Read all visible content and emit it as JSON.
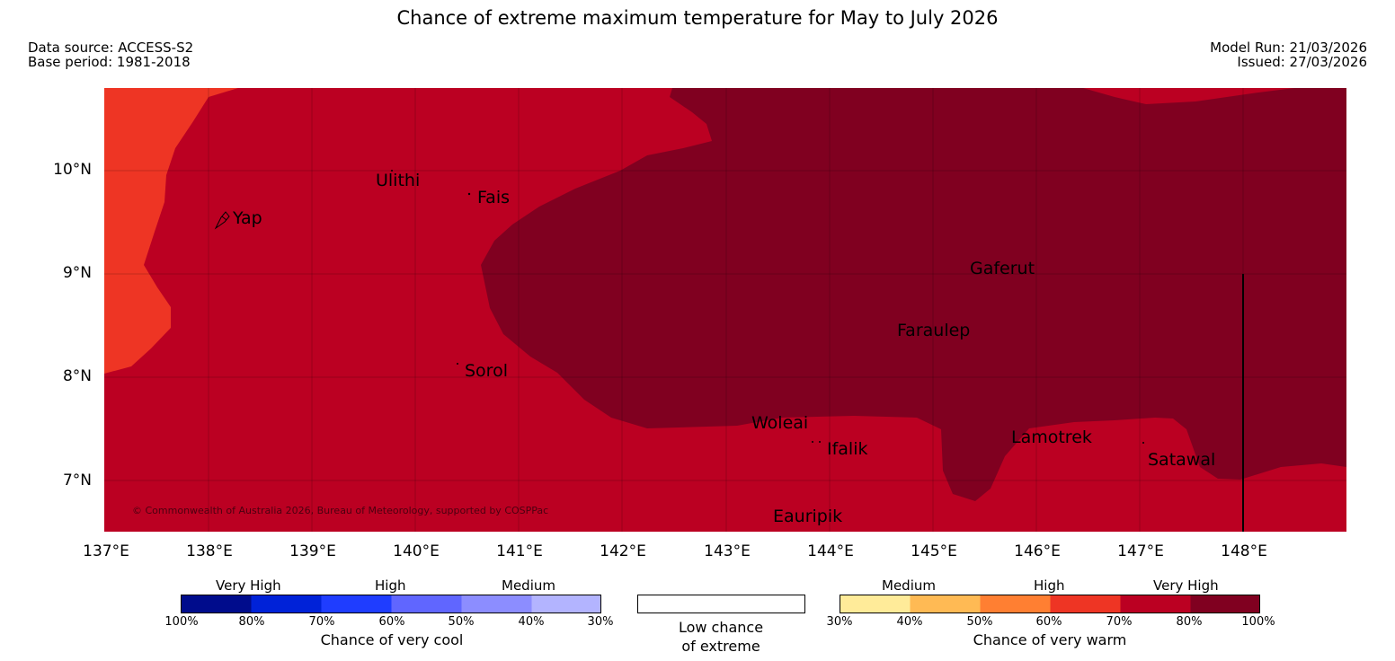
{
  "title": "Chance of extreme maximum temperature for May to July 2026",
  "meta": {
    "data_source": "Data source: ACCESS-S2",
    "base_period": "Base period: 1981-2018",
    "model_run": "Model Run: 21/03/2026",
    "issued": "Issued: 27/03/2026"
  },
  "map": {
    "lat_labels": [
      "10°N",
      "9°N",
      "8°N",
      "7°N"
    ],
    "lon_labels": [
      "137°E",
      "138°E",
      "139°E",
      "140°E",
      "141°E",
      "142°E",
      "143°E",
      "144°E",
      "145°E",
      "146°E",
      "147°E",
      "148°E"
    ],
    "places": [
      "Yap",
      "Ulithi",
      "Fais",
      "Gaferut",
      "Faraulep",
      "Sorol",
      "Woleai",
      "Ifalik",
      "Lamotrek",
      "Satawal",
      "Eauripik"
    ],
    "copyright": "© Commonwealth of Australia 2026, Bureau of Meteorology, supported by COSPPac",
    "colors": {
      "very_warm_60_70": "#ee3524",
      "very_warm_70_80": "#bb0022",
      "very_warm_80_100": "#800020"
    }
  },
  "legend": {
    "cool": {
      "headings": [
        "Very High",
        "High",
        "Medium"
      ],
      "ticks": [
        "100%",
        "80%",
        "70%",
        "60%",
        "50%",
        "40%",
        "30%"
      ],
      "colors": [
        "#000c8c",
        "#0022d8",
        "#1f3dff",
        "#6066ff",
        "#8c8dff",
        "#b3b4ff"
      ],
      "caption": "Chance of very cool"
    },
    "low": {
      "caption_line1": "Low chance",
      "caption_line2": "of extreme"
    },
    "warm": {
      "headings": [
        "Medium",
        "High",
        "Very High"
      ],
      "ticks": [
        "30%",
        "40%",
        "50%",
        "60%",
        "70%",
        "80%",
        "100%"
      ],
      "colors": [
        "#ffeb99",
        "#ffba54",
        "#ff7f32",
        "#ee3524",
        "#bb0022",
        "#800020"
      ],
      "caption": "Chance of very warm"
    }
  }
}
